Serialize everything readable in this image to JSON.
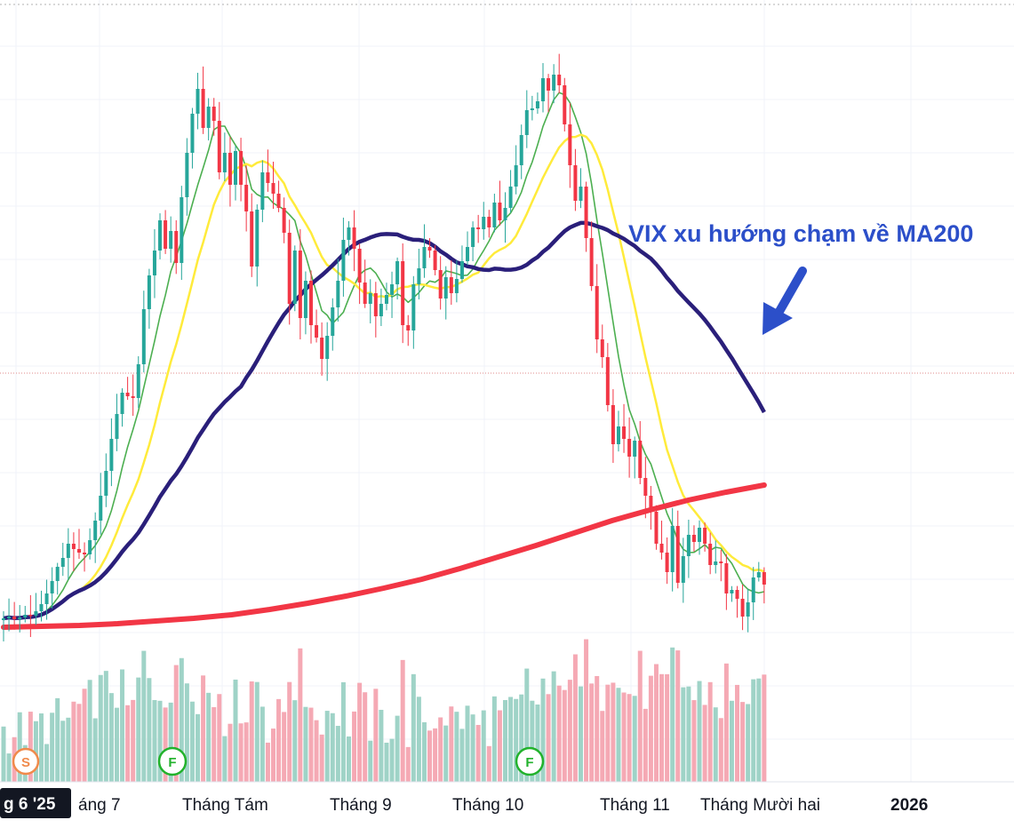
{
  "chart_data": {
    "type": "candlestick",
    "title": "",
    "annotation": "VIX xu hướng chạm về MA200",
    "x_axis_labels": [
      "g 6 '25",
      "áng 7",
      "Tháng Tám",
      "Tháng 9",
      "Tháng 10",
      "Tháng 11",
      "Tháng Mười hai",
      "2026"
    ],
    "current_date_label": "g 6 '25",
    "event_badges": [
      "S",
      "F",
      "F"
    ],
    "colors": {
      "up": "#26a69a",
      "down": "#f23645",
      "volume_up": "#9fd3c7",
      "volume_down": "#f5a9b4",
      "ma_fast": "#4caf50",
      "ma_mid": "#ffeb3b",
      "ma_long": "#2a1f7a",
      "ma200": "#f23645",
      "annotation": "#2c4fc9",
      "badge_s": "#f08a4b",
      "badge_f": "#22b22c"
    },
    "candle_closes": [
      0.5,
      0.6,
      0.45,
      0.55,
      0.7,
      0.65,
      0.9,
      1.3,
      1.9,
      2.6,
      3.4,
      3.9,
      4.7,
      4.4,
      4.2,
      4.1,
      4.9,
      6.0,
      7.4,
      8.8,
      10.6,
      12.0,
      13.2,
      13.0,
      12.9,
      14.8,
      17.9,
      19.8,
      21.2,
      22.9,
      21.3,
      22.3,
      20.5,
      24.2,
      26.7,
      28.9,
      30.3,
      28.1,
      29.3,
      28.5,
      25.6,
      26.7,
      24.9,
      26.8,
      24.9,
      23.4,
      20.3,
      23.5,
      25.6,
      25.0,
      24.4,
      23.6,
      22.2,
      18.2,
      21.2,
      17.4,
      19.5,
      17.0,
      16.3,
      15.1,
      16.4,
      18.0,
      19.5,
      21.8,
      22.5,
      21.3,
      19.4,
      18.2,
      18.8,
      17.5,
      18.2,
      18.7,
      19.3,
      20.6,
      17.0,
      16.7,
      19.3,
      20.2,
      21.4,
      21.2,
      20.1,
      18.5,
      19.7,
      18.8,
      19.6,
      20.6,
      21.4,
      22.5,
      22.4,
      23.1,
      22.5,
      23.9,
      22.9,
      23.6,
      24.8,
      26.0,
      27.7,
      29.1,
      29.2,
      29.6,
      30.9,
      30.2,
      31.1,
      30.5,
      28.3,
      26.0,
      24.0,
      24.8,
      21.9,
      19.2,
      16.2,
      15.2,
      12.5,
      10.3,
      11.3,
      10.6,
      9.6,
      10.5,
      8.4,
      7.4,
      6.5,
      4.7,
      4.2,
      3.1,
      5.7,
      2.5,
      4.0,
      5.2,
      4.8,
      5.6,
      4.7,
      3.5,
      3.7,
      3.6,
      1.9,
      2.1,
      1.6,
      0.6,
      1.4,
      2.8,
      3.1,
      2.4
    ],
    "ma200_values": [
      0.0,
      0.05,
      0.1,
      0.2,
      0.35,
      0.5,
      0.7,
      1.0,
      1.35,
      1.75,
      2.2,
      2.7,
      3.3,
      3.95,
      4.6,
      5.3,
      6.0,
      6.6,
      7.15,
      7.6,
      8.0
    ]
  }
}
